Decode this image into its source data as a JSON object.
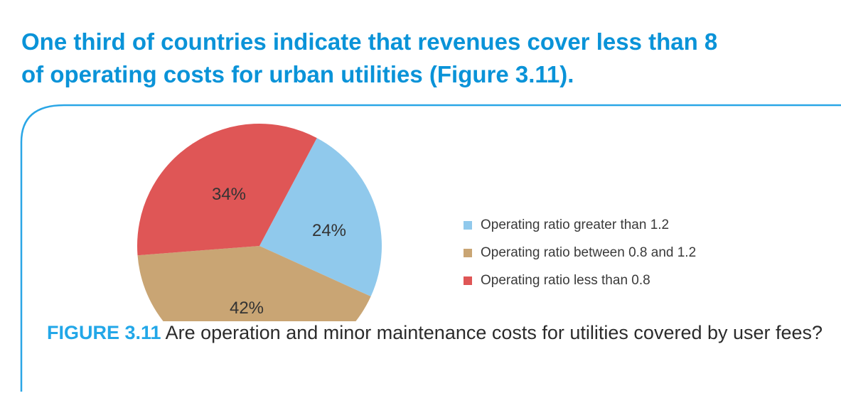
{
  "heading": {
    "line1": "One third of countries indicate that revenues cover less than 8",
    "line2": "of operating costs for urban utilities (Figure 3.11)."
  },
  "chart_data": {
    "type": "pie",
    "title": "",
    "slices": [
      {
        "label": "Operating ratio greater than 1.2",
        "value": 24,
        "value_label": "24%",
        "color": "#90c9ec"
      },
      {
        "label": "Operating ratio between 0.8 and 1.2",
        "value": 42,
        "value_label": "42%",
        "color": "#c9a574"
      },
      {
        "label": "Operating ratio less than 0.8",
        "value": 34,
        "value_label": "34%",
        "color": "#df5656"
      }
    ],
    "legend_position": "right"
  },
  "caption": {
    "label": "FIGURE 3.11",
    "text": " Are operation and minor maintenance costs for utilities covered by user fees?"
  },
  "colors": {
    "heading": "#0a93d8",
    "frame_line": "#2aa6e6",
    "caption_label": "#22a7e8"
  }
}
